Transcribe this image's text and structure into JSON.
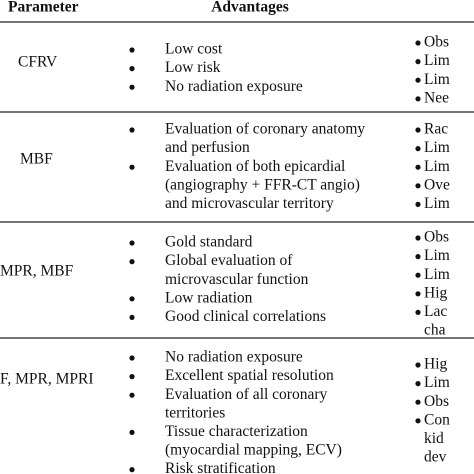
{
  "header": {
    "columns": [
      "Parameter",
      "Advantages"
    ]
  },
  "rows": [
    {
      "parameter": "CFRV",
      "advantages": [
        [
          "Low cost"
        ],
        [
          "Low risk"
        ],
        [
          "No radiation exposure"
        ]
      ],
      "disadvantages": [
        [
          "Obs"
        ],
        [
          "Lim"
        ],
        [
          "Lim"
        ],
        [
          "Nee"
        ]
      ]
    },
    {
      "parameter": "MBF",
      "advantages": [
        [
          "Evaluation of coronary anatomy",
          "and perfusion"
        ],
        [
          "Evaluation of both epicardial",
          "(angiography + FFR-CT angio)",
          "and microvascular territory"
        ]
      ],
      "disadvantages": [
        [
          "Rac"
        ],
        [
          "Lim"
        ],
        [
          "Lim"
        ],
        [
          "Ove"
        ],
        [
          "Lim"
        ]
      ]
    },
    {
      "parameter": "MPR, MBF",
      "advantages": [
        [
          "Gold standard"
        ],
        [
          "Global evaluation of",
          "microvascular function"
        ],
        [
          "Low radiation"
        ],
        [
          "Good clinical correlations"
        ]
      ],
      "disadvantages": [
        [
          "Obs"
        ],
        [
          "Lim"
        ],
        [
          "Lim"
        ],
        [
          "Hig"
        ],
        [
          "Lac",
          "cha"
        ]
      ]
    },
    {
      "parameter": "F, MPR, MPRI",
      "advantages": [
        [
          "No radiation exposure"
        ],
        [
          "Excellent spatial resolution"
        ],
        [
          "Evaluation of all coronary",
          "territories"
        ],
        [
          "Tissue characterization",
          "(myocardial mapping, ECV)"
        ],
        [
          "Risk stratification"
        ]
      ],
      "disadvantages": [
        [
          "Hig"
        ],
        [
          "Lim"
        ],
        [
          "Obs"
        ],
        [
          "Con",
          "kid",
          "dev"
        ]
      ]
    }
  ]
}
